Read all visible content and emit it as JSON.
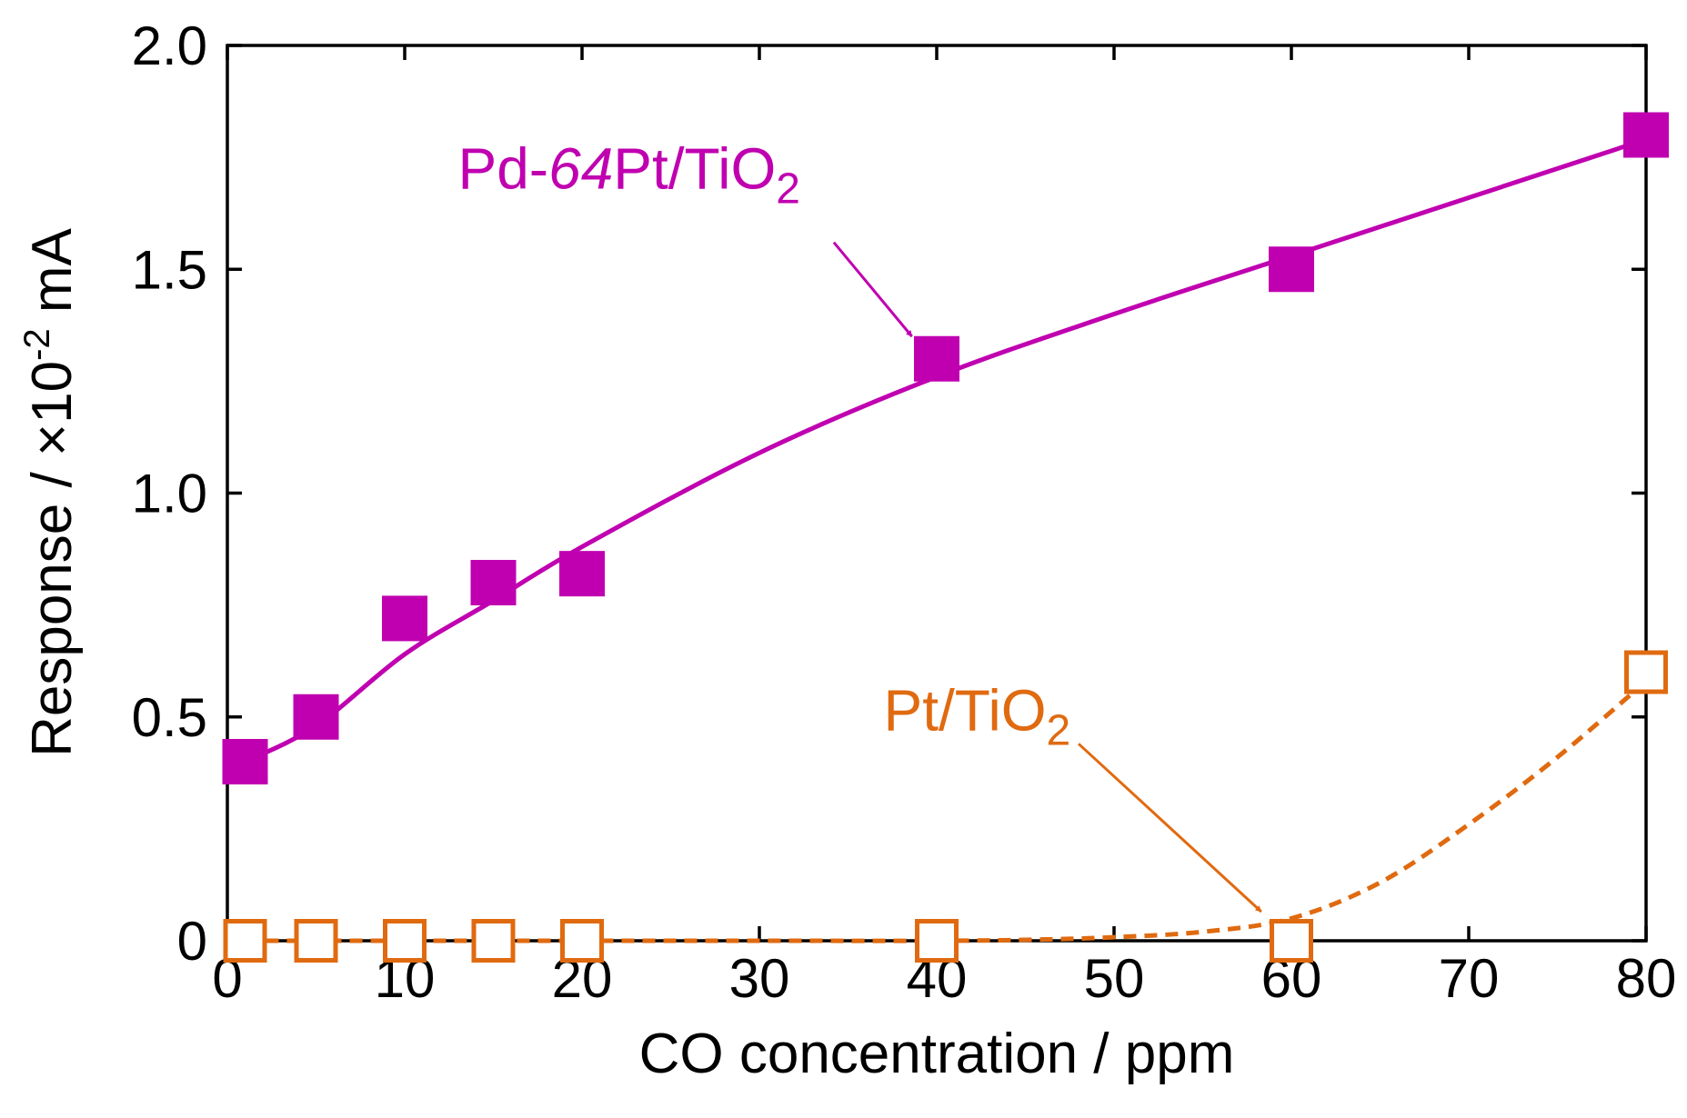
{
  "chart_data": {
    "type": "scatter",
    "title": "",
    "xlabel": "CO concentration / ppm",
    "ylabel": {
      "text": "Response / ×10",
      "superscript": "-2",
      "unit": " mA"
    },
    "xlim": [
      0,
      80
    ],
    "ylim": [
      0,
      2.0
    ],
    "xticks": [
      0,
      10,
      20,
      30,
      40,
      50,
      60,
      70,
      80
    ],
    "xtick_labels": [
      "0",
      "10",
      "20",
      "30",
      "40",
      "50",
      "60",
      "70",
      "80"
    ],
    "yticks": [
      0,
      0.5,
      1.0,
      1.5,
      2.0
    ],
    "ytick_labels": [
      "0",
      "0.5",
      "1.0",
      "1.5",
      "2.0"
    ],
    "grid": false,
    "series": [
      {
        "name": "Pd-64Pt/TiO2",
        "color": "#C000B0",
        "marker": "filled-square",
        "line_style": "solid",
        "x": [
          1,
          5,
          10,
          15,
          20,
          40,
          60,
          80
        ],
        "y": [
          0.4,
          0.5,
          0.72,
          0.8,
          0.82,
          1.3,
          1.5,
          1.8
        ],
        "fit_curve": {
          "x": [
            1,
            5,
            10,
            15,
            20,
            30,
            40,
            50,
            60,
            70,
            80
          ],
          "y": [
            0.4,
            0.48,
            0.64,
            0.76,
            0.88,
            1.09,
            1.26,
            1.4,
            1.53,
            1.66,
            1.79
          ]
        }
      },
      {
        "name": "Pt/TiO2",
        "color": "#E06A10",
        "marker": "open-square",
        "line_style": "dashed",
        "x": [
          1,
          5,
          10,
          15,
          20,
          40,
          60,
          80
        ],
        "y": [
          0,
          0,
          0,
          0,
          0,
          0,
          0,
          0.6
        ],
        "fit_curve": {
          "x": [
            1,
            10,
            20,
            30,
            40,
            45,
            50,
            55,
            60,
            65,
            70,
            75,
            80
          ],
          "y": [
            0.0,
            0.0,
            0.0,
            0.0,
            0.0,
            0.002,
            0.008,
            0.02,
            0.05,
            0.13,
            0.26,
            0.41,
            0.58
          ]
        }
      }
    ],
    "annotations": [
      {
        "series": 0,
        "text": "Pd-",
        "italic": "64",
        "rest": "Pt/TiO",
        "sub": "2",
        "label_at": [
          13.0,
          1.68
        ],
        "arrow_from": [
          34.2,
          1.56
        ],
        "arrow_to": [
          38.6,
          1.35
        ]
      },
      {
        "series": 1,
        "text": "Pt/TiO",
        "italic": "",
        "rest": "",
        "sub": "2",
        "label_at": [
          37.0,
          0.47
        ],
        "arrow_from": [
          48.0,
          0.44
        ],
        "arrow_to": [
          58.3,
          0.065
        ]
      }
    ]
  }
}
